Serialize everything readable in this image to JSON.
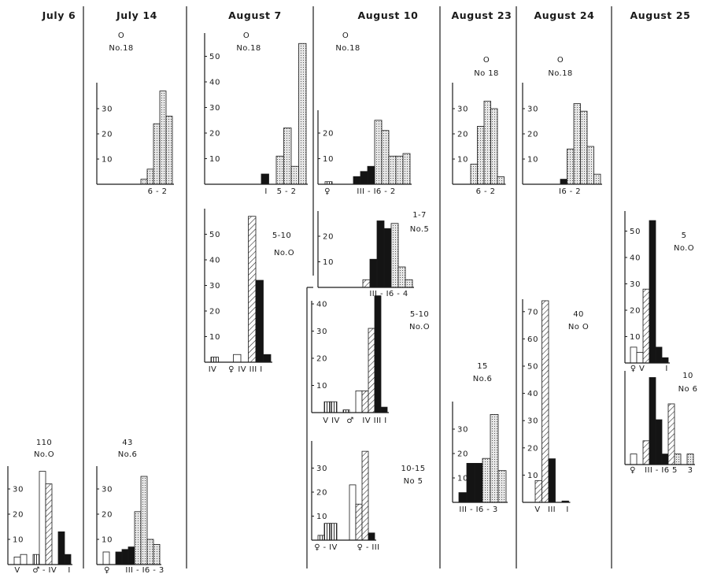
{
  "colors": {
    "ink": "#1a1a1a",
    "background": "#ffffff",
    "black_fill": "#141414",
    "dotted_fill": "#e6e6e6"
  },
  "patterns": [
    "white",
    "vertical-hatch",
    "diagonal-hatch",
    "black",
    "dotted"
  ],
  "columns": [
    {
      "date": "July 6"
    },
    {
      "date": "July 14"
    },
    {
      "date": "August 7"
    },
    {
      "date": "August 10"
    },
    {
      "date": "August 23"
    },
    {
      "date": "August 24"
    },
    {
      "date": "August 25"
    }
  ],
  "chart_data": [
    {
      "type": "bar",
      "column": "July 6",
      "labels": [
        "110",
        "No.O"
      ],
      "yticks": [
        10,
        20,
        30
      ],
      "xlabels": [
        "V",
        "♂",
        "- IV",
        "I"
      ],
      "bars": [
        {
          "value": 3,
          "pattern": "white"
        },
        {
          "value": 4,
          "pattern": "white"
        },
        {
          "value": 0,
          "pattern": "white"
        },
        {
          "value": 4,
          "pattern": "vertical-hatch"
        },
        {
          "value": 37,
          "pattern": "white"
        },
        {
          "value": 32,
          "pattern": "diagonal-hatch"
        },
        {
          "value": 0,
          "pattern": "white"
        },
        {
          "value": 13,
          "pattern": "black"
        },
        {
          "value": 4,
          "pattern": "black"
        }
      ]
    },
    {
      "type": "bar",
      "column": "July 14",
      "labels": [
        "O",
        "No.18"
      ],
      "yticks": [
        10,
        20,
        30
      ],
      "xlabels": [
        "6 - 2"
      ],
      "bars": [
        {
          "value": 2,
          "pattern": "dotted"
        },
        {
          "value": 6,
          "pattern": "dotted"
        },
        {
          "value": 24,
          "pattern": "dotted"
        },
        {
          "value": 37,
          "pattern": "dotted"
        },
        {
          "value": 27,
          "pattern": "dotted"
        }
      ]
    },
    {
      "type": "bar",
      "column": "July 14",
      "labels": [
        "43",
        "No.6"
      ],
      "yticks": [
        10,
        20,
        30
      ],
      "xlabels": [
        "♀",
        "III - I6 - 3"
      ],
      "bars": [
        {
          "value": 5,
          "pattern": "white"
        },
        {
          "value": 0,
          "pattern": "white"
        },
        {
          "value": 5,
          "pattern": "black"
        },
        {
          "value": 6,
          "pattern": "black"
        },
        {
          "value": 7,
          "pattern": "black"
        },
        {
          "value": 21,
          "pattern": "dotted"
        },
        {
          "value": 35,
          "pattern": "dotted"
        },
        {
          "value": 10,
          "pattern": "dotted"
        },
        {
          "value": 8,
          "pattern": "dotted"
        }
      ]
    },
    {
      "type": "bar",
      "column": "August 7",
      "labels": [
        "O",
        "No.18"
      ],
      "yticks": [
        10,
        20,
        30,
        40,
        50
      ],
      "xlabels": [
        "I",
        "5 - 2"
      ],
      "bars": [
        {
          "value": 4,
          "pattern": "black"
        },
        {
          "value": 0,
          "pattern": "white"
        },
        {
          "value": 11,
          "pattern": "dotted"
        },
        {
          "value": 22,
          "pattern": "dotted"
        },
        {
          "value": 7,
          "pattern": "dotted"
        },
        {
          "value": 55,
          "pattern": "dotted"
        }
      ]
    },
    {
      "type": "bar",
      "column": "August 7",
      "labels": [
        "5-10",
        "No.O"
      ],
      "yticks": [
        10,
        20,
        30,
        40,
        50
      ],
      "xlabels": [
        "IV",
        "♀",
        "IV III I"
      ],
      "bars": [
        {
          "value": 2,
          "pattern": "vertical-hatch"
        },
        {
          "value": 0,
          "pattern": "white"
        },
        {
          "value": 0,
          "pattern": "white"
        },
        {
          "value": 3,
          "pattern": "white"
        },
        {
          "value": 0,
          "pattern": "white"
        },
        {
          "value": 57,
          "pattern": "diagonal-hatch"
        },
        {
          "value": 32,
          "pattern": "black"
        },
        {
          "value": 3,
          "pattern": "black"
        }
      ]
    },
    {
      "type": "bar",
      "column": "August 10",
      "labels": [
        "O",
        "No.18"
      ],
      "yticks": [
        10,
        20
      ],
      "xlabels": [
        "♀",
        "III - I6 - 2"
      ],
      "bars": [
        {
          "value": 1,
          "pattern": "vertical-hatch"
        },
        {
          "value": 0,
          "pattern": "white"
        },
        {
          "value": 0,
          "pattern": "white"
        },
        {
          "value": 0,
          "pattern": "white"
        },
        {
          "value": 3,
          "pattern": "black"
        },
        {
          "value": 5,
          "pattern": "black"
        },
        {
          "value": 7,
          "pattern": "black"
        },
        {
          "value": 25,
          "pattern": "dotted"
        },
        {
          "value": 21,
          "pattern": "dotted"
        },
        {
          "value": 11,
          "pattern": "dotted"
        },
        {
          "value": 11,
          "pattern": "dotted"
        },
        {
          "value": 12,
          "pattern": "dotted"
        }
      ]
    },
    {
      "type": "bar",
      "column": "August 10",
      "labels": [
        "1-7",
        "No.5"
      ],
      "yticks": [
        10,
        20
      ],
      "xlabels": [
        "III - I6 - 4"
      ],
      "bars": [
        {
          "value": 3,
          "pattern": "diagonal-hatch"
        },
        {
          "value": 11,
          "pattern": "black"
        },
        {
          "value": 26,
          "pattern": "black"
        },
        {
          "value": 23,
          "pattern": "black"
        },
        {
          "value": 25,
          "pattern": "dotted"
        },
        {
          "value": 8,
          "pattern": "dotted"
        },
        {
          "value": 3,
          "pattern": "dotted"
        }
      ]
    },
    {
      "type": "bar",
      "column": "August 10",
      "labels": [
        "5-10",
        "No.O"
      ],
      "yticks": [
        10,
        20,
        30,
        40
      ],
      "xlabels": [
        "V IV",
        "♂",
        "IV III I"
      ],
      "bars": [
        {
          "value": 4,
          "pattern": "vertical-hatch"
        },
        {
          "value": 4,
          "pattern": "vertical-hatch"
        },
        {
          "value": 0,
          "pattern": "white"
        },
        {
          "value": 1,
          "pattern": "vertical-hatch"
        },
        {
          "value": 0,
          "pattern": "white"
        },
        {
          "value": 8,
          "pattern": "white"
        },
        {
          "value": 8,
          "pattern": "diagonal-hatch"
        },
        {
          "value": 31,
          "pattern": "diagonal-hatch"
        },
        {
          "value": 43,
          "pattern": "black"
        },
        {
          "value": 2,
          "pattern": "black"
        }
      ]
    },
    {
      "type": "bar",
      "column": "August 10",
      "labels": [
        "10-15",
        "No 5"
      ],
      "yticks": [
        10,
        20,
        30
      ],
      "xlabels": [
        "♀ - IV",
        "♀ - III"
      ],
      "bars": [
        {
          "value": 2,
          "pattern": "vertical-hatch"
        },
        {
          "value": 7,
          "pattern": "vertical-hatch"
        },
        {
          "value": 7,
          "pattern": "vertical-hatch"
        },
        {
          "value": 0,
          "pattern": "white"
        },
        {
          "value": 0,
          "pattern": "white"
        },
        {
          "value": 23,
          "pattern": "white"
        },
        {
          "value": 15,
          "pattern": "diagonal-hatch"
        },
        {
          "value": 37,
          "pattern": "diagonal-hatch"
        },
        {
          "value": 3,
          "pattern": "black"
        }
      ]
    },
    {
      "type": "bar",
      "column": "August 23",
      "labels": [
        "O",
        "No 18"
      ],
      "yticks": [
        10,
        20,
        30
      ],
      "xlabels": [
        "6 - 2"
      ],
      "bars": [
        {
          "value": 8,
          "pattern": "dotted"
        },
        {
          "value": 23,
          "pattern": "dotted"
        },
        {
          "value": 33,
          "pattern": "dotted"
        },
        {
          "value": 30,
          "pattern": "dotted"
        },
        {
          "value": 3,
          "pattern": "dotted"
        }
      ]
    },
    {
      "type": "bar",
      "column": "August 23",
      "labels": [
        "15",
        "No.6"
      ],
      "yticks": [
        10,
        20,
        30
      ],
      "xlabels": [
        "III - I6 - 3"
      ],
      "bars": [
        {
          "value": 4,
          "pattern": "black"
        },
        {
          "value": 16,
          "pattern": "black"
        },
        {
          "value": 16,
          "pattern": "black"
        },
        {
          "value": 18,
          "pattern": "dotted"
        },
        {
          "value": 36,
          "pattern": "dotted"
        },
        {
          "value": 13,
          "pattern": "dotted"
        }
      ]
    },
    {
      "type": "bar",
      "column": "August 24",
      "labels": [
        "O",
        "No.18"
      ],
      "yticks": [
        10,
        20,
        30
      ],
      "xlabels": [
        "I6 - 2"
      ],
      "bars": [
        {
          "value": 2,
          "pattern": "black"
        },
        {
          "value": 14,
          "pattern": "dotted"
        },
        {
          "value": 32,
          "pattern": "dotted"
        },
        {
          "value": 29,
          "pattern": "dotted"
        },
        {
          "value": 15,
          "pattern": "dotted"
        },
        {
          "value": 4,
          "pattern": "dotted"
        }
      ]
    },
    {
      "type": "bar",
      "column": "August 24",
      "labels": [
        "40",
        "No O"
      ],
      "yticks": [
        10,
        20,
        30,
        40,
        50,
        60,
        70
      ],
      "xlabels": [
        "V",
        "III",
        "I"
      ],
      "bars": [
        {
          "value": 8,
          "pattern": "diagonal-hatch"
        },
        {
          "value": 74,
          "pattern": "diagonal-hatch"
        },
        {
          "value": 16,
          "pattern": "black"
        },
        {
          "value": 0,
          "pattern": "white"
        },
        {
          "value": 0.5,
          "pattern": "black"
        }
      ]
    },
    {
      "type": "bar",
      "column": "August 25",
      "labels": [
        "5",
        "No.O"
      ],
      "yticks": [
        10,
        20,
        30,
        40,
        50
      ],
      "xlabels": [
        "♀ V",
        "I"
      ],
      "bars": [
        {
          "value": 6,
          "pattern": "white"
        },
        {
          "value": 4,
          "pattern": "white"
        },
        {
          "value": 28,
          "pattern": "diagonal-hatch"
        },
        {
          "value": 54,
          "pattern": "black"
        },
        {
          "value": 6,
          "pattern": "black"
        },
        {
          "value": 2,
          "pattern": "black"
        }
      ]
    },
    {
      "type": "bar",
      "column": "August 25",
      "labels": [
        "10",
        "No 6"
      ],
      "yticks": [],
      "xlabels": [
        "♀",
        "III - I6 5",
        "3"
      ],
      "bars": [
        {
          "value": 4,
          "pattern": "white"
        },
        {
          "value": 0,
          "pattern": "white"
        },
        {
          "value": 9,
          "pattern": "diagonal-hatch"
        },
        {
          "value": 33,
          "pattern": "black"
        },
        {
          "value": 17,
          "pattern": "black"
        },
        {
          "value": 4,
          "pattern": "black"
        },
        {
          "value": 23,
          "pattern": "diagonal-hatch"
        },
        {
          "value": 4,
          "pattern": "dotted"
        },
        {
          "value": 0,
          "pattern": "white"
        },
        {
          "value": 4,
          "pattern": "dotted"
        }
      ]
    }
  ]
}
